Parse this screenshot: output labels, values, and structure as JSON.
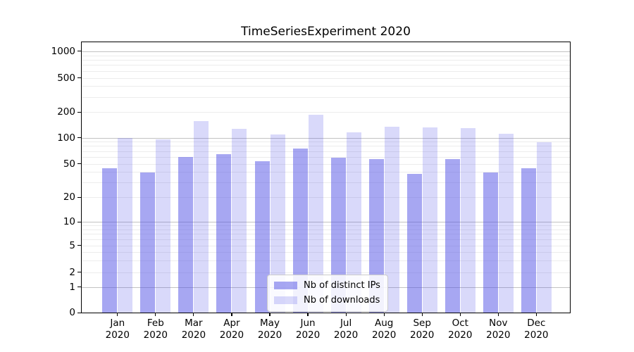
{
  "title": "TimeSeriesExperiment 2020",
  "chart_data": {
    "type": "bar",
    "title": "TimeSeriesExperiment 2020",
    "x_categories_line1": [
      "Jan",
      "Feb",
      "Mar",
      "Apr",
      "May",
      "Jun",
      "Jul",
      "Aug",
      "Sep",
      "Oct",
      "Nov",
      "Dec"
    ],
    "x_categories_line2": [
      "2020",
      "2020",
      "2020",
      "2020",
      "2020",
      "2020",
      "2020",
      "2020",
      "2020",
      "2020",
      "2020",
      "2020"
    ],
    "series": [
      {
        "name": "Nb of distinct IPs",
        "color": "rgba(80,80,230,0.5)",
        "values": [
          44,
          39,
          60,
          64,
          53,
          75,
          59,
          56,
          38,
          57,
          39,
          44
        ]
      },
      {
        "name": "Nb of downloads",
        "color": "rgba(80,80,230,0.22)",
        "values": [
          100,
          95,
          158,
          128,
          110,
          185,
          115,
          135,
          131,
          129,
          112,
          89
        ]
      }
    ],
    "y_axis": {
      "scale": "symlog",
      "ticks": [
        0,
        1,
        2,
        5,
        10,
        20,
        50,
        100,
        200,
        500,
        1000
      ],
      "ylim": [
        0,
        1300
      ],
      "major_grid_values": [
        1,
        10,
        100,
        1000
      ]
    },
    "grid": "horizontal major+minor, log subdivisions",
    "legend_position": "lower center inside plot",
    "colors": {
      "bar_dark": "rgba(80,80,230,0.5)",
      "bar_light": "rgba(80,80,230,0.22)",
      "grid_major": "#c2c2c2",
      "grid_minor": "#ececec",
      "axis": "#000000",
      "background": "#ffffff"
    }
  },
  "legend": {
    "items": [
      {
        "label": "Nb of distinct IPs"
      },
      {
        "label": "Nb of downloads"
      }
    ]
  }
}
